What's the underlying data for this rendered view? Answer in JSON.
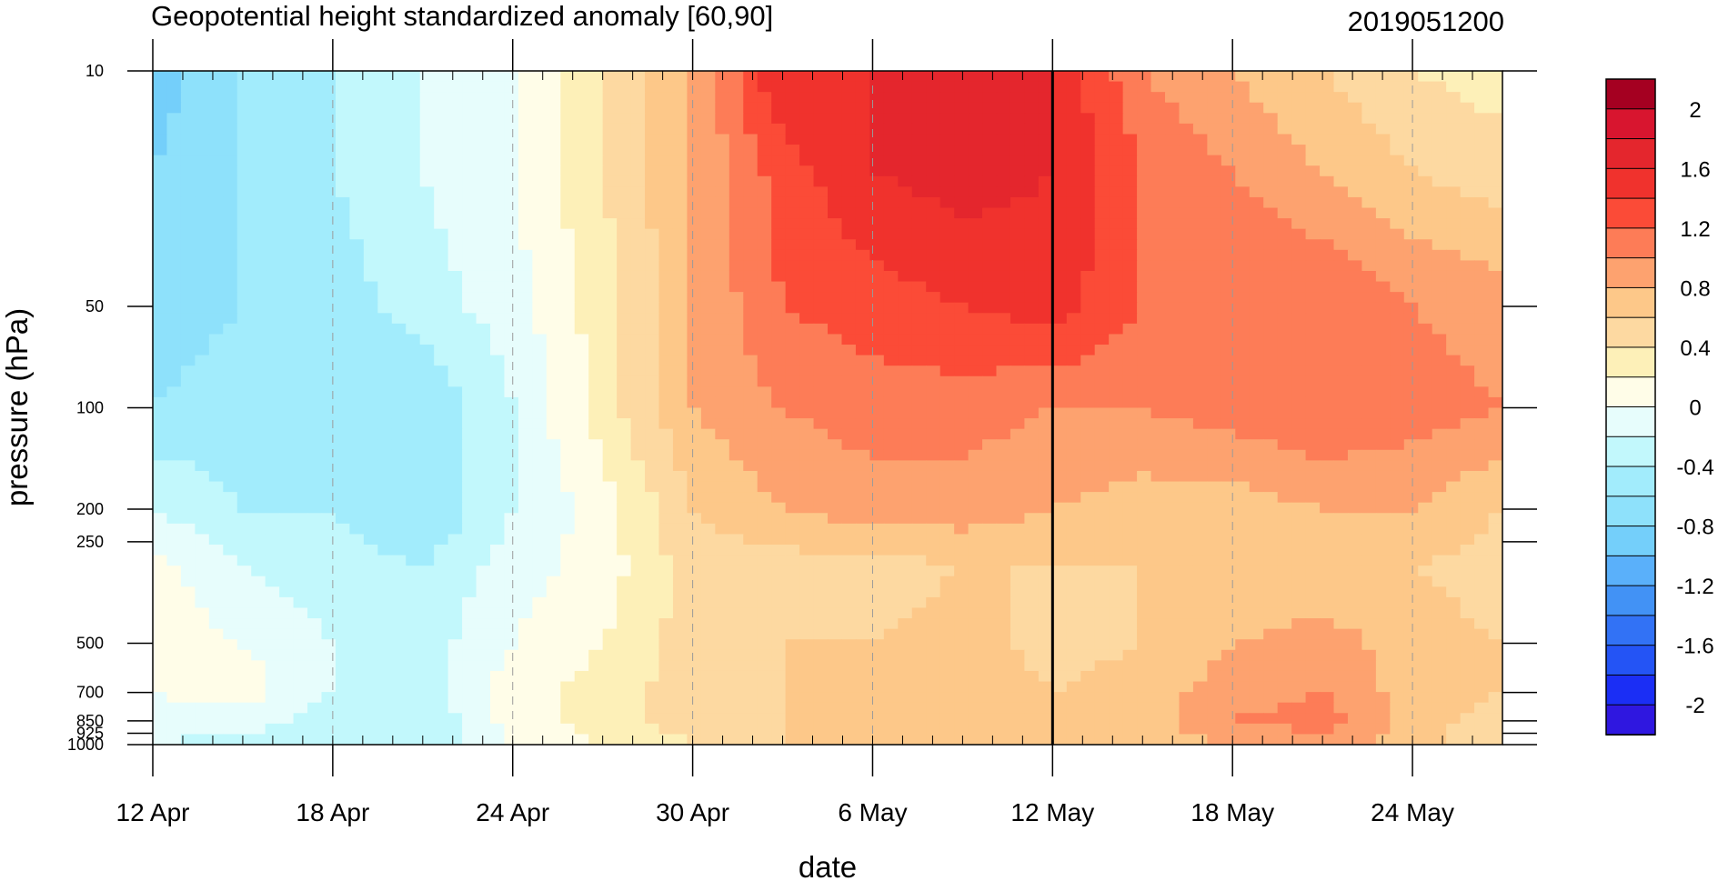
{
  "title_left": "Geopotential height standardized anomaly [60,90]",
  "title_right": "2019051200",
  "chart_data": {
    "type": "heatmap",
    "subtype": "filled-contour (time-pressure cross section)",
    "xlabel": "date",
    "ylabel": "pressure (hPa)",
    "x_ticks": [
      "12 Apr",
      "18 Apr",
      "24 Apr",
      "30 Apr",
      "6 May",
      "12 May",
      "18 May",
      "24 May"
    ],
    "x_start": "2019-04-12",
    "x_end": "2019-05-27",
    "y_scale": "log",
    "y_reversed": true,
    "y_ticks": [
      "10",
      "50",
      "100",
      "200",
      "250",
      "500",
      "700",
      "850",
      "925",
      "1000"
    ],
    "ylim": [
      1000,
      10
    ],
    "vertical_marker_date": "2019-05-12",
    "colorbar": {
      "labels": [
        "2",
        "1.6",
        "1.2",
        "0.8",
        "0.4",
        "0",
        "-0.4",
        "-0.8",
        "-1.2",
        "-1.6",
        "-2"
      ],
      "levels": [
        2.2,
        2.0,
        1.8,
        1.6,
        1.4,
        1.2,
        1.0,
        0.8,
        0.6,
        0.4,
        0.2,
        0.0,
        -0.2,
        -0.4,
        -0.6,
        -0.8,
        -1.0,
        -1.2,
        -1.4,
        -1.6,
        -1.8,
        -2.0,
        -2.2
      ],
      "colors": [
        "#a50021",
        "#d8152f",
        "#e4262d",
        "#f0322d",
        "#fb4b37",
        "#fd7c57",
        "#fda26f",
        "#fdc889",
        "#fdd9a1",
        "#fdf0b8",
        "#fffde8",
        "#e7fdfc",
        "#c2f8fc",
        "#a2ecfc",
        "#8ee1fb",
        "#74cffa",
        "#5ab0fa",
        "#4292f5",
        "#3272f5",
        "#2454f5",
        "#1b2ef5",
        "#2f17e0"
      ]
    },
    "field": {
      "dates": [
        "12 Apr",
        "15 Apr",
        "18 Apr",
        "21 Apr",
        "24 Apr",
        "27 Apr",
        "30 Apr",
        "3 May",
        "6 May",
        "9 May",
        "12 May",
        "15 May",
        "18 May",
        "21 May",
        "24 May",
        "27 May"
      ],
      "pressure_levels": [
        10,
        20,
        50,
        100,
        200,
        300,
        500,
        700,
        850,
        1000
      ],
      "values": [
        [
          -0.9,
          -0.6,
          -0.4,
          -0.2,
          0.0,
          0.4,
          0.8,
          1.6,
          1.6,
          1.6,
          1.6,
          1.0,
          0.8,
          0.6,
          0.4,
          0.3
        ],
        [
          -0.8,
          -0.6,
          -0.4,
          -0.2,
          0.0,
          0.4,
          0.8,
          1.3,
          1.6,
          1.7,
          1.6,
          1.2,
          1.0,
          0.8,
          0.6,
          0.5
        ],
        [
          -0.7,
          -0.6,
          -0.5,
          -0.3,
          -0.1,
          0.3,
          0.8,
          1.2,
          1.3,
          1.4,
          1.5,
          1.2,
          1.2,
          1.2,
          1.0,
          0.9
        ],
        [
          -0.6,
          -0.5,
          -0.5,
          -0.6,
          -0.2,
          0.3,
          0.8,
          1.0,
          1.1,
          1.1,
          1.0,
          1.0,
          1.1,
          1.2,
          1.1,
          1.0
        ],
        [
          -0.2,
          -0.4,
          -0.4,
          -0.6,
          -0.2,
          0.1,
          0.6,
          0.8,
          0.9,
          0.9,
          0.8,
          0.7,
          0.7,
          0.8,
          0.8,
          0.6
        ],
        [
          0.1,
          -0.2,
          -0.3,
          -0.4,
          -0.1,
          0.1,
          0.5,
          0.5,
          0.5,
          0.6,
          0.6,
          0.6,
          0.6,
          0.6,
          0.6,
          0.5
        ],
        [
          0.1,
          0.0,
          -0.2,
          -0.3,
          0.0,
          0.2,
          0.5,
          0.6,
          0.6,
          0.7,
          0.5,
          0.6,
          0.8,
          0.9,
          0.7,
          0.6
        ],
        [
          0.0,
          0.1,
          -0.2,
          -0.3,
          0.1,
          0.3,
          0.5,
          0.6,
          0.7,
          0.8,
          0.6,
          0.7,
          0.9,
          1.0,
          0.7,
          0.6
        ],
        [
          -0.1,
          -0.1,
          -0.3,
          -0.4,
          0.1,
          0.3,
          0.5,
          0.6,
          0.7,
          0.8,
          0.6,
          0.7,
          1.0,
          1.1,
          0.7,
          0.5
        ],
        [
          -0.2,
          -0.3,
          -0.3,
          -0.4,
          0.0,
          0.2,
          0.4,
          0.6,
          0.7,
          0.8,
          0.6,
          0.7,
          0.8,
          0.9,
          0.7,
          0.4
        ]
      ]
    }
  }
}
